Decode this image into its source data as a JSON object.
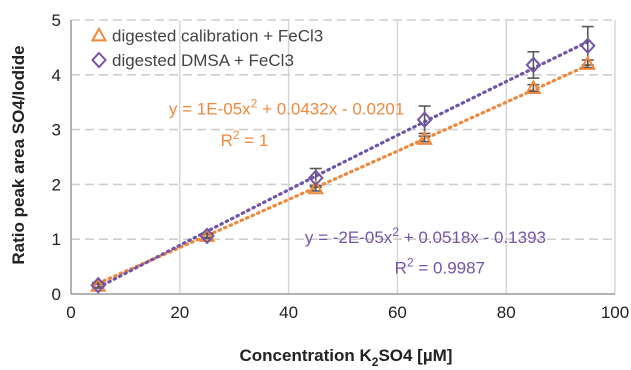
{
  "chart_data": {
    "type": "scatter",
    "title": "",
    "xlabel": "Concentration K₂SO4 [µM]",
    "ylabel": "Ratio peak area SO4/Iodide",
    "xlim": [
      0,
      100
    ],
    "ylim": [
      0,
      5
    ],
    "x_ticks": [
      "0",
      "20",
      "40",
      "60",
      "80",
      "100"
    ],
    "y_ticks": [
      "0",
      "1",
      "2",
      "3",
      "4",
      "5"
    ],
    "grid": {
      "vertical": "solid",
      "horizontal": "dashed"
    },
    "legend_position": "top-left",
    "series": [
      {
        "name": "digested calibration + FeCl3",
        "marker": "triangle",
        "color": "#f0883c",
        "x": [
          5,
          25,
          45,
          65,
          85,
          95
        ],
        "y": [
          0.15,
          1.06,
          1.93,
          2.83,
          3.76,
          4.2
        ],
        "error": [
          0.03,
          0.03,
          0.05,
          0.05,
          0.06,
          0.07
        ],
        "trendline": {
          "kind": "polynomial",
          "coefficients": [
            1e-05,
            0.0432,
            -0.0201
          ],
          "equation": "y = 1E-05x² + 0.0432x - 0.0201",
          "r2": "R² = 1"
        }
      },
      {
        "name": "digested DMSA + FeCl3",
        "marker": "diamond",
        "color": "#7355a8",
        "x": [
          5,
          25,
          45,
          65,
          85,
          95
        ],
        "y": [
          0.16,
          1.06,
          2.12,
          3.18,
          4.18,
          4.53
        ],
        "error": [
          0.05,
          0.05,
          0.17,
          0.25,
          0.24,
          0.35
        ],
        "trendline": {
          "kind": "polynomial",
          "coefficients": [
            -2e-05,
            0.0518,
            -0.1393
          ],
          "equation": "y = -2E-05x² + 0.0518x - 0.1393",
          "r2": "R² = 0.9987"
        }
      }
    ]
  }
}
